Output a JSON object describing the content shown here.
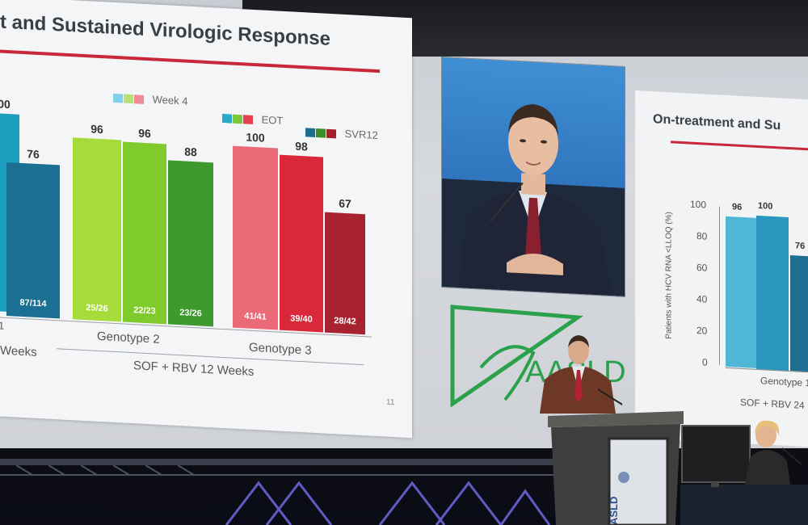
{
  "left_slide": {
    "title": "t and Sustained Virologic Response",
    "legend": [
      {
        "label": "Week 4",
        "colors": [
          "#7fd0e8",
          "#b7e07a",
          "#f28b95"
        ]
      },
      {
        "label": "EOT",
        "colors": [
          "#2aa9c9",
          "#7cc63b",
          "#e6404f"
        ]
      },
      {
        "label": "SVR12",
        "colors": [
          "#1b6e8e",
          "#3a8f2a",
          "#a4202c"
        ]
      }
    ],
    "bars": [
      {
        "top": "00",
        "inner": "",
        "color": "#1c9fbf"
      },
      {
        "top": "76",
        "inner": "87/114",
        "color": "#1a6f92"
      },
      {
        "top": "96",
        "inner": "25/26",
        "color": "#a6dc3a"
      },
      {
        "top": "96",
        "inner": "22/23",
        "color": "#7fcb2b"
      },
      {
        "top": "88",
        "inner": "23/26",
        "color": "#3e9a2d"
      },
      {
        "top": "100",
        "inner": "41/41",
        "color": "#ec6a78"
      },
      {
        "top": "98",
        "inner": "39/40",
        "color": "#d8283a"
      },
      {
        "top": "67",
        "inner": "28/42",
        "color": "#a82230"
      }
    ],
    "labels": {
      "g1_digit": "1",
      "weeks": "Weeks",
      "g2": "Genotype 2",
      "g3": "Genotype 3",
      "regimen": "SOF + RBV 12 Weeks",
      "page": "11"
    }
  },
  "right_slide": {
    "title": "On-treatment and Su",
    "ylabel": "Patients with HCV RNA <LLOQ (%)",
    "yticks": [
      "100",
      "80",
      "60",
      "40",
      "20",
      "0"
    ],
    "bar_tops": [
      "96",
      "100",
      "76"
    ],
    "bar_colors": [
      "#4fb6d6",
      "#2a95bd",
      "#1f6f92"
    ],
    "g_label": "Genotype 1",
    "regimen": "SOF + RBV 24"
  },
  "logo": {
    "text": "AASLD",
    "color": "#2aa14a"
  },
  "podium": {
    "panel_text": "ASLD"
  }
}
